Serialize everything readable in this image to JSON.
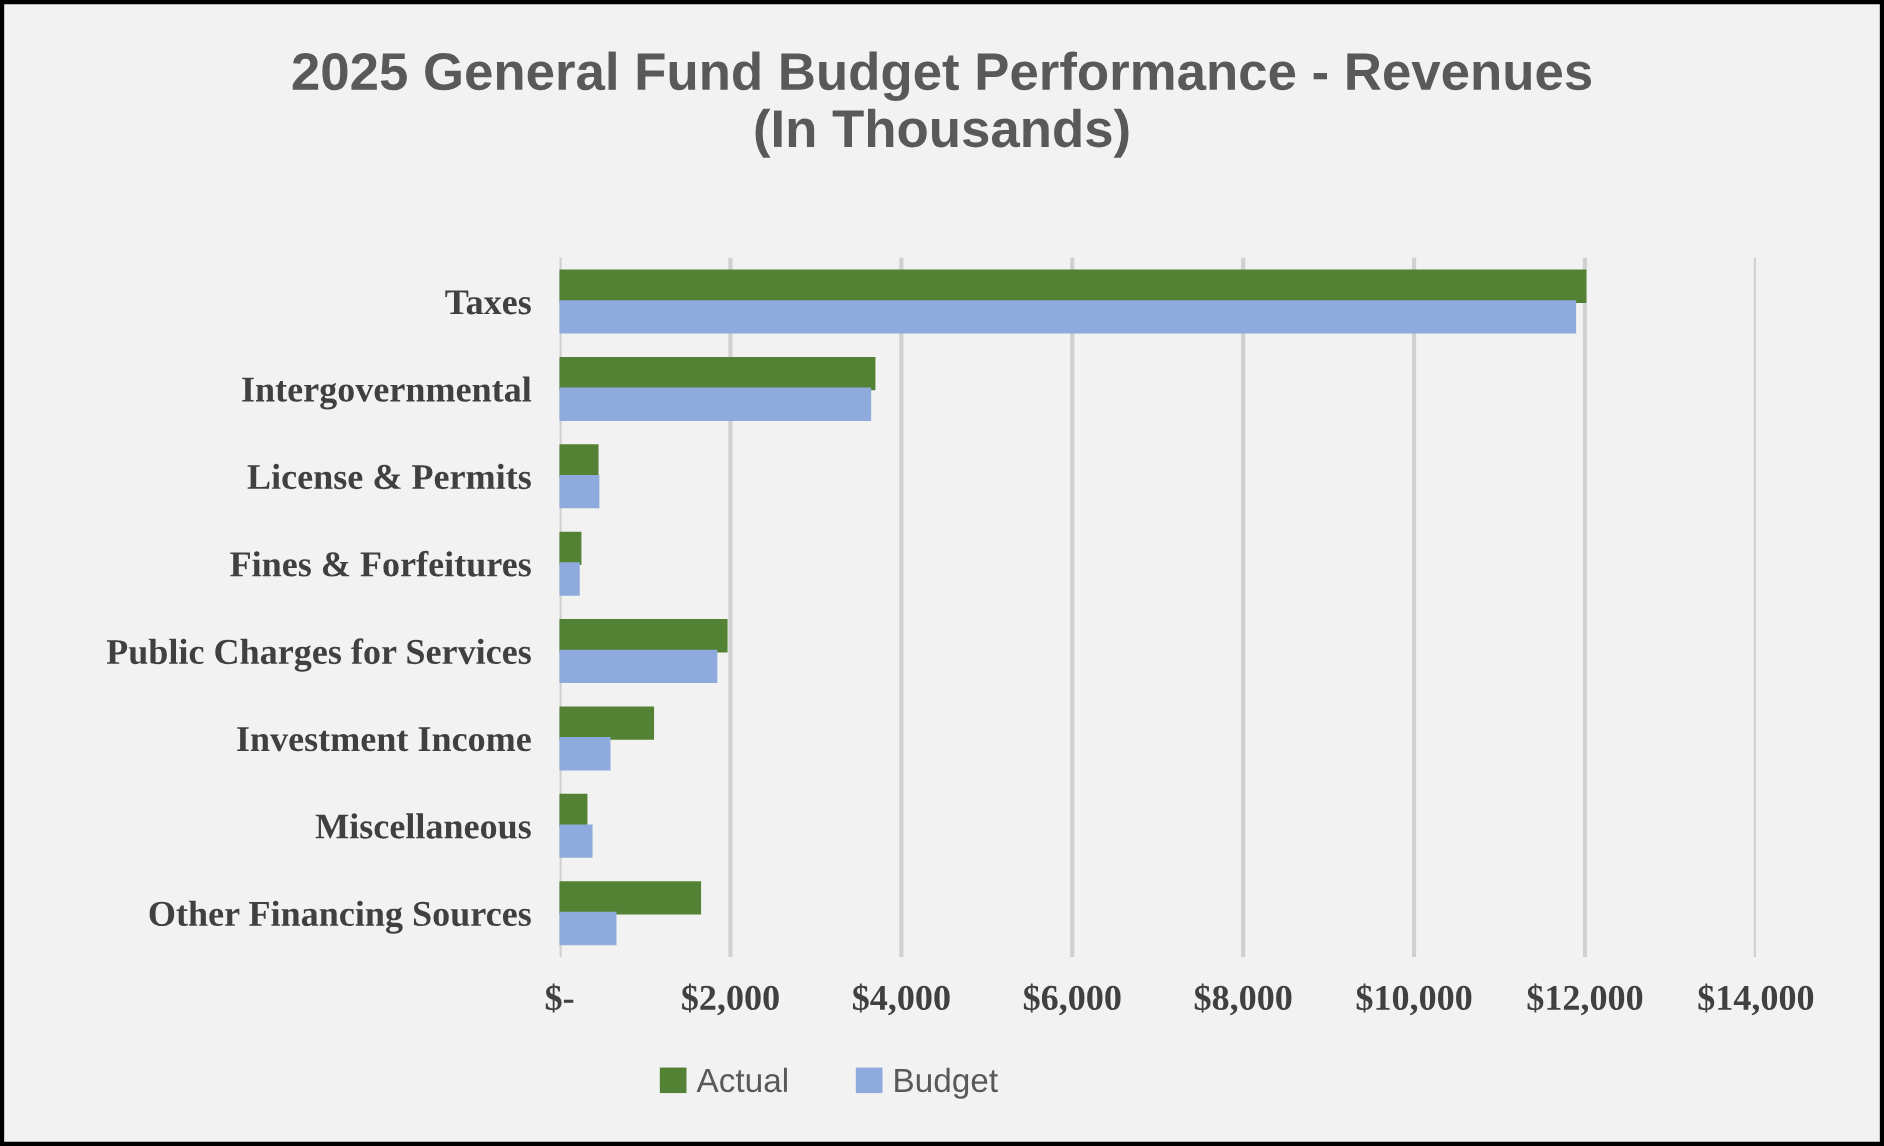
{
  "chart_data": {
    "type": "bar",
    "orientation": "horizontal",
    "title": "2025 General Fund Budget Performance - Revenues\n(In Thousands)",
    "categories": [
      "Taxes",
      "Intergovernmental",
      "License & Permits",
      "Fines & Forfeitures",
      "Public Charges for Services",
      "Investment Income",
      "Miscellaneous",
      "Other Financing Sources"
    ],
    "series": [
      {
        "name": "Actual",
        "color": "#548235",
        "values": [
          12000,
          3680,
          440,
          240,
          1950,
          1090,
          310,
          1640
        ]
      },
      {
        "name": "Budget",
        "color": "#8faadc",
        "values": [
          11880,
          3630,
          450,
          220,
          1830,
          580,
          370,
          650
        ]
      }
    ],
    "xlim": [
      0,
      14000
    ],
    "xticks": [
      {
        "value": 0,
        "label": "$-"
      },
      {
        "value": 2000,
        "label": "$2,000"
      },
      {
        "value": 4000,
        "label": "$4,000"
      },
      {
        "value": 6000,
        "label": "$6,000"
      },
      {
        "value": 8000,
        "label": "$8,000"
      },
      {
        "value": 10000,
        "label": "$10,000"
      },
      {
        "value": 12000,
        "label": "$12,000"
      },
      {
        "value": 14000,
        "label": "$14,000"
      }
    ],
    "grid": "x",
    "legend": "bottom"
  }
}
